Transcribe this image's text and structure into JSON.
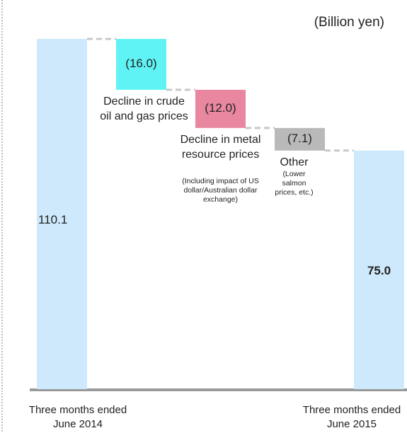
{
  "chart_data": {
    "type": "waterfall",
    "unit": "(Billion yen)",
    "categories": [
      "Three months ended June 2014",
      "Decline in crude oil and gas prices",
      "Decline in metal resource prices",
      "Other",
      "Three months ended June 2015"
    ],
    "notes": [
      null,
      null,
      "(Including impact of US dollar/Australian dollar exchange)",
      "(Lower salmon prices, etc.)",
      null
    ],
    "values": [
      110.1,
      -16.0,
      -12.0,
      -7.1,
      75.0
    ],
    "value_labels": [
      "110.1",
      "(16.0)",
      "(12.0)",
      "(7.1)",
      "75.0"
    ],
    "colors": [
      "#cde9fb",
      "#5ff3f5",
      "#e8879f",
      "#b9b9b9",
      "#cde9fb"
    ]
  }
}
